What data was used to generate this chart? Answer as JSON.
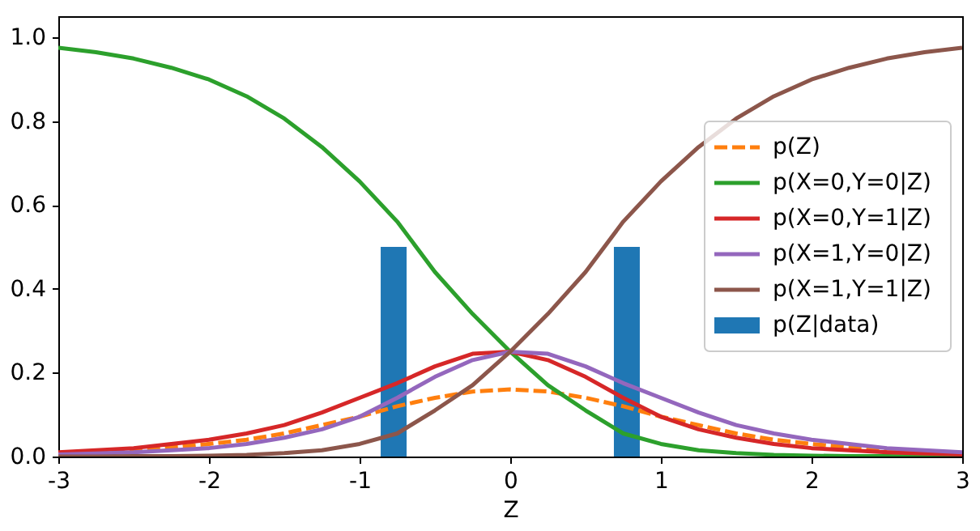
{
  "chart_data": {
    "type": "line",
    "xlabel": "Z",
    "x": [
      -3,
      -2.75,
      -2.5,
      -2.25,
      -2,
      -1.75,
      -1.5,
      -1.25,
      -1,
      -0.75,
      -0.5,
      -0.25,
      0,
      0.25,
      0.5,
      0.75,
      1,
      1.25,
      1.5,
      1.75,
      2,
      2.25,
      2.5,
      2.75,
      3
    ],
    "series": [
      {
        "name": "p(Z)",
        "type": "line",
        "line_style": "dashed",
        "color": "#ff7f0e",
        "values": [
          0.005,
          0.01,
          0.015,
          0.022,
          0.03,
          0.04,
          0.055,
          0.075,
          0.095,
          0.12,
          0.14,
          0.155,
          0.16,
          0.155,
          0.14,
          0.12,
          0.095,
          0.075,
          0.055,
          0.04,
          0.03,
          0.022,
          0.015,
          0.01,
          0.005
        ]
      },
      {
        "name": "p(X=0,Y=0|Z)",
        "type": "line",
        "line_style": "solid",
        "color": "#2ca02c",
        "values": [
          0.975,
          0.964,
          0.949,
          0.927,
          0.899,
          0.859,
          0.806,
          0.738,
          0.656,
          0.56,
          0.44,
          0.34,
          0.25,
          0.17,
          0.11,
          0.055,
          0.03,
          0.015,
          0.008,
          0.004,
          0.002,
          0.001,
          0.001,
          0,
          0
        ]
      },
      {
        "name": "p(X=0,Y=1|Z)",
        "type": "line",
        "line_style": "solid",
        "color": "#d62728",
        "values": [
          0.01,
          0.015,
          0.02,
          0.03,
          0.04,
          0.055,
          0.075,
          0.105,
          0.14,
          0.175,
          0.215,
          0.245,
          0.25,
          0.23,
          0.19,
          0.14,
          0.095,
          0.065,
          0.045,
          0.03,
          0.02,
          0.015,
          0.01,
          0.007,
          0.005
        ]
      },
      {
        "name": "p(X=1,Y=0|Z)",
        "type": "line",
        "line_style": "solid",
        "color": "#9467bd",
        "values": [
          0.005,
          0.007,
          0.01,
          0.015,
          0.02,
          0.03,
          0.045,
          0.065,
          0.095,
          0.14,
          0.19,
          0.23,
          0.25,
          0.245,
          0.215,
          0.175,
          0.14,
          0.105,
          0.075,
          0.055,
          0.04,
          0.03,
          0.02,
          0.015,
          0.01
        ]
      },
      {
        "name": "p(X=1,Y=1|Z)",
        "type": "line",
        "line_style": "solid",
        "color": "#8c564b",
        "values": [
          0,
          0,
          0.001,
          0.001,
          0.002,
          0.004,
          0.008,
          0.015,
          0.03,
          0.055,
          0.11,
          0.17,
          0.25,
          0.34,
          0.44,
          0.56,
          0.656,
          0.738,
          0.806,
          0.859,
          0.899,
          0.927,
          0.949,
          0.964,
          0.975
        ]
      },
      {
        "name": "p(Z|data)",
        "type": "histogram",
        "color": "#1f77b4",
        "bins": [
          -0.86,
          -0.688,
          -0.516,
          -0.344,
          -0.172,
          0,
          0.172,
          0.344,
          0.516,
          0.688,
          0.86
        ],
        "values": [
          0.5,
          0,
          0,
          0,
          0,
          0,
          0,
          0,
          0,
          0.5
        ]
      }
    ],
    "xlim": [
      -3,
      3
    ],
    "xticks": [
      -3,
      -2,
      -1,
      0,
      1,
      2,
      3
    ],
    "ylim": [
      0,
      1.05
    ],
    "yticks": [
      {
        "value": 0,
        "label": "0.0"
      },
      {
        "value": 0.2,
        "label": "0.2"
      },
      {
        "value": 0.4,
        "label": "0.4"
      },
      {
        "value": 0.6,
        "label": "0.6"
      },
      {
        "value": 0.8,
        "label": "0.8"
      },
      {
        "value": 1.0,
        "label": "1.0"
      }
    ],
    "grid": false,
    "legend": "right",
    "marker": "none"
  }
}
